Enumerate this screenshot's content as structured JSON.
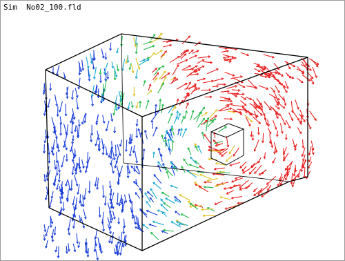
{
  "window": {
    "title": "Sim  No02_100.fld"
  }
}
